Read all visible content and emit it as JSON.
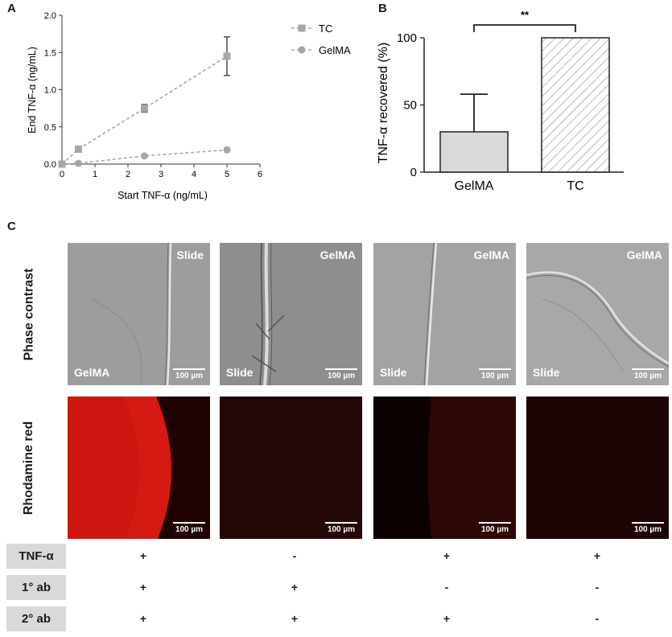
{
  "panels": {
    "a": "A",
    "b": "B",
    "c": "C"
  },
  "chart_data": [
    {
      "type": "line",
      "xlabel": "Start TNF-α (ng/mL)",
      "ylabel": "End TNF-α (ng/mL)",
      "xlim": [
        0,
        6
      ],
      "ylim": [
        0,
        2.0
      ],
      "xticks": [
        "0",
        "1",
        "2",
        "3",
        "4",
        "5",
        "6"
      ],
      "yticks": [
        "0.0",
        "0.5",
        "1.0",
        "1.5",
        "2.0"
      ],
      "legend_position": "top-right",
      "series": [
        {
          "name": "TC",
          "marker": "square",
          "color": "#a6a6a6",
          "x": [
            0,
            0.5,
            2.5,
            5
          ],
          "y": [
            0,
            0.2,
            0.75,
            1.45
          ],
          "error": [
            0,
            0,
            0.05,
            0.26
          ]
        },
        {
          "name": "GelMA",
          "marker": "circle",
          "color": "#a6a6a6",
          "x": [
            0,
            0.5,
            2.5,
            5
          ],
          "y": [
            0,
            0.01,
            0.11,
            0.19
          ],
          "error": [
            0,
            0,
            0,
            0
          ]
        }
      ]
    },
    {
      "type": "bar",
      "ylabel": "TNF-α recovered (%)",
      "categories": [
        "GelMA",
        "TC"
      ],
      "values": [
        30,
        100
      ],
      "errors": [
        28,
        0
      ],
      "ylim": [
        0,
        100
      ],
      "yticks": [
        "0",
        "50",
        "100"
      ],
      "fills": [
        "#d9d9d9",
        "hatched"
      ],
      "significance": "**"
    }
  ],
  "panel_c": {
    "row_labels": [
      "Phase contrast",
      "Rhodamine red"
    ],
    "scale_bar": "100 µm",
    "phase_tags": [
      {
        "top_right": "Slide",
        "bottom_left": "GelMA"
      },
      {
        "top_right": "GelMA",
        "bottom_left": "Slide"
      },
      {
        "top_right": "GelMA",
        "bottom_left": "Slide"
      },
      {
        "top_right": "GelMA",
        "bottom_left": "Slide"
      }
    ],
    "conditions": [
      {
        "label": "TNF-α",
        "values": [
          "+",
          "-",
          "+",
          "+"
        ]
      },
      {
        "label": "1° ab",
        "values": [
          "+",
          "+",
          "-",
          "-"
        ]
      },
      {
        "label": "2° ab",
        "values": [
          "+",
          "+",
          "+",
          "-"
        ]
      }
    ]
  }
}
